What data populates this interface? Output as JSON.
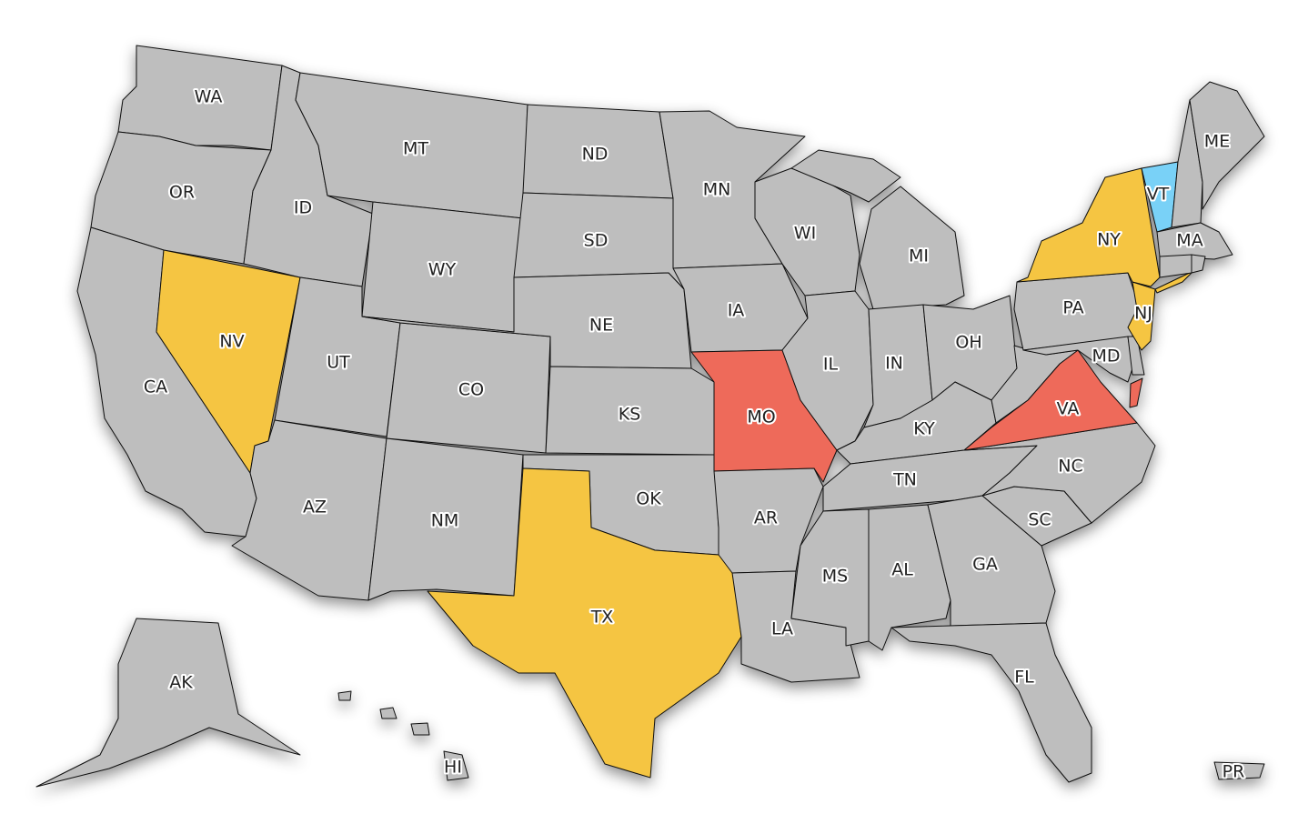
{
  "map": {
    "legend_colors": {
      "default": "#BEBEBE",
      "yellow": "#F5C542",
      "red": "#EE6B5A",
      "blue": "#79D1F7"
    },
    "states": [
      {
        "abbr": "WA",
        "fill": "#BEBEBE"
      },
      {
        "abbr": "OR",
        "fill": "#BEBEBE"
      },
      {
        "abbr": "CA",
        "fill": "#BEBEBE"
      },
      {
        "abbr": "NV",
        "fill": "#F5C542"
      },
      {
        "abbr": "ID",
        "fill": "#BEBEBE"
      },
      {
        "abbr": "MT",
        "fill": "#BEBEBE"
      },
      {
        "abbr": "WY",
        "fill": "#BEBEBE"
      },
      {
        "abbr": "UT",
        "fill": "#BEBEBE"
      },
      {
        "abbr": "CO",
        "fill": "#BEBEBE"
      },
      {
        "abbr": "AZ",
        "fill": "#BEBEBE"
      },
      {
        "abbr": "NM",
        "fill": "#BEBEBE"
      },
      {
        "abbr": "ND",
        "fill": "#BEBEBE"
      },
      {
        "abbr": "SD",
        "fill": "#BEBEBE"
      },
      {
        "abbr": "NE",
        "fill": "#BEBEBE"
      },
      {
        "abbr": "KS",
        "fill": "#BEBEBE"
      },
      {
        "abbr": "OK",
        "fill": "#BEBEBE"
      },
      {
        "abbr": "TX",
        "fill": "#F5C542"
      },
      {
        "abbr": "MN",
        "fill": "#BEBEBE"
      },
      {
        "abbr": "IA",
        "fill": "#BEBEBE"
      },
      {
        "abbr": "MO",
        "fill": "#EE6B5A"
      },
      {
        "abbr": "AR",
        "fill": "#BEBEBE"
      },
      {
        "abbr": "LA",
        "fill": "#BEBEBE"
      },
      {
        "abbr": "WI",
        "fill": "#BEBEBE"
      },
      {
        "abbr": "IL",
        "fill": "#BEBEBE"
      },
      {
        "abbr": "MI",
        "fill": "#BEBEBE"
      },
      {
        "abbr": "IN",
        "fill": "#BEBEBE"
      },
      {
        "abbr": "OH",
        "fill": "#BEBEBE"
      },
      {
        "abbr": "KY",
        "fill": "#BEBEBE"
      },
      {
        "abbr": "TN",
        "fill": "#BEBEBE"
      },
      {
        "abbr": "MS",
        "fill": "#BEBEBE"
      },
      {
        "abbr": "AL",
        "fill": "#BEBEBE"
      },
      {
        "abbr": "GA",
        "fill": "#BEBEBE"
      },
      {
        "abbr": "FL",
        "fill": "#BEBEBE"
      },
      {
        "abbr": "SC",
        "fill": "#BEBEBE"
      },
      {
        "abbr": "NC",
        "fill": "#BEBEBE"
      },
      {
        "abbr": "VA",
        "fill": "#EE6B5A"
      },
      {
        "abbr": "WV",
        "fill": "#BEBEBE",
        "unlabeled": true
      },
      {
        "abbr": "PA",
        "fill": "#BEBEBE"
      },
      {
        "abbr": "MD",
        "fill": "#BEBEBE"
      },
      {
        "abbr": "DE",
        "fill": "#BEBEBE",
        "unlabeled": true
      },
      {
        "abbr": "NJ",
        "fill": "#F5C542"
      },
      {
        "abbr": "NY",
        "fill": "#F5C542"
      },
      {
        "abbr": "VT",
        "fill": "#79D1F7"
      },
      {
        "abbr": "NH",
        "fill": "#BEBEBE",
        "unlabeled": true
      },
      {
        "abbr": "ME",
        "fill": "#BEBEBE"
      },
      {
        "abbr": "MA",
        "fill": "#BEBEBE"
      },
      {
        "abbr": "CT",
        "fill": "#BEBEBE",
        "unlabeled": true
      },
      {
        "abbr": "RI",
        "fill": "#BEBEBE",
        "unlabeled": true
      },
      {
        "abbr": "AK",
        "fill": "#BEBEBE"
      },
      {
        "abbr": "HI",
        "fill": "#BEBEBE"
      },
      {
        "abbr": "PR",
        "fill": "#BEBEBE"
      }
    ]
  }
}
